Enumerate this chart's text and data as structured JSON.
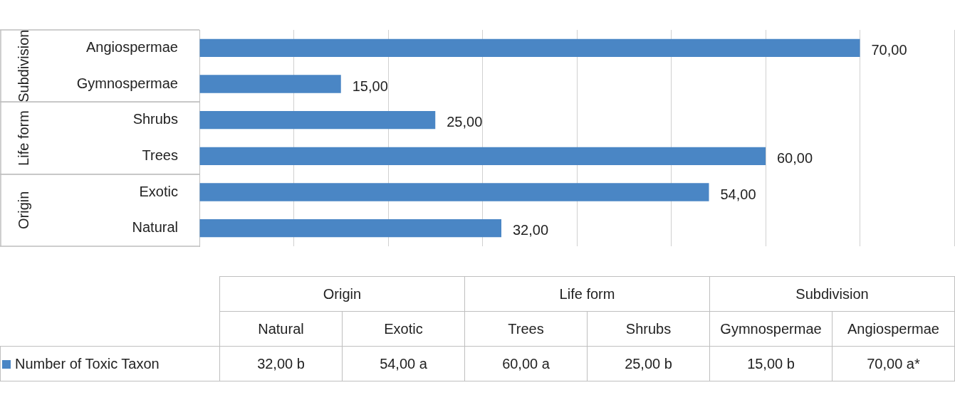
{
  "chart_data": {
    "type": "bar",
    "orientation": "horizontal",
    "categories": [
      "Angiospermae",
      "Gymnospermae",
      "Shrubs",
      "Trees",
      "Exotic",
      "Natural"
    ],
    "series": [
      {
        "name": "Number of Toxic Taxon",
        "color": "#4a86c5",
        "values": [
          70,
          15,
          25,
          60,
          54,
          32
        ],
        "value_labels": [
          "70,00",
          "15,00",
          "25,00",
          "60,00",
          "54,00",
          "32,00"
        ]
      }
    ],
    "xlim": [
      0,
      80
    ],
    "xticks": [
      0,
      10,
      20,
      30,
      40,
      50,
      60,
      70,
      80
    ],
    "tick_labels": "y",
    "grid": "x",
    "legend": "bottom",
    "annotations": [
      "Subdivision",
      "Life form",
      "Origin",
      "32,00 b",
      "54,00 a",
      "60,00 a",
      "25,00 b",
      "15,00 b",
      "70,00 a*"
    ]
  }
}
